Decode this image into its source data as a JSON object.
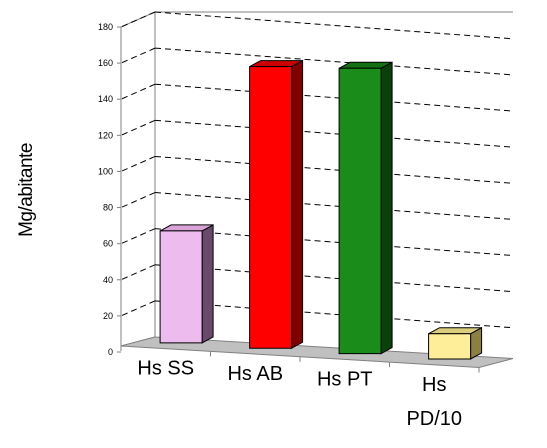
{
  "chart_data": {
    "type": "bar",
    "title": "",
    "xlabel": "",
    "ylabel": "Mg/abitante",
    "categories": [
      "Hs SS",
      "Hs AB",
      "Hs PT",
      "Hs PD/10"
    ],
    "category_lines": [
      [
        "Hs SS"
      ],
      [
        "Hs AB"
      ],
      [
        "Hs PT"
      ],
      [
        "Hs",
        "PD/10"
      ]
    ],
    "values": [
      62,
      156,
      158,
      14
    ],
    "ylim": [
      0,
      180
    ],
    "yticks": [
      0,
      20,
      40,
      60,
      80,
      100,
      120,
      140,
      160,
      180
    ],
    "grid": true,
    "projection": "3d",
    "legend": "none",
    "colors": [
      {
        "front": "#eebbee",
        "side": "#6a4a6a",
        "top": "#d9a3d9"
      },
      {
        "front": "#ff0000",
        "side": "#800000",
        "top": "#cc0000"
      },
      {
        "front": "#1a8c1a",
        "side": "#0a400a",
        "top": "#137013"
      },
      {
        "front": "#ffee99",
        "side": "#8c8040",
        "top": "#d9cc7a"
      }
    ],
    "floor_color": "#c0c0c0",
    "grid_color": "#000000"
  }
}
